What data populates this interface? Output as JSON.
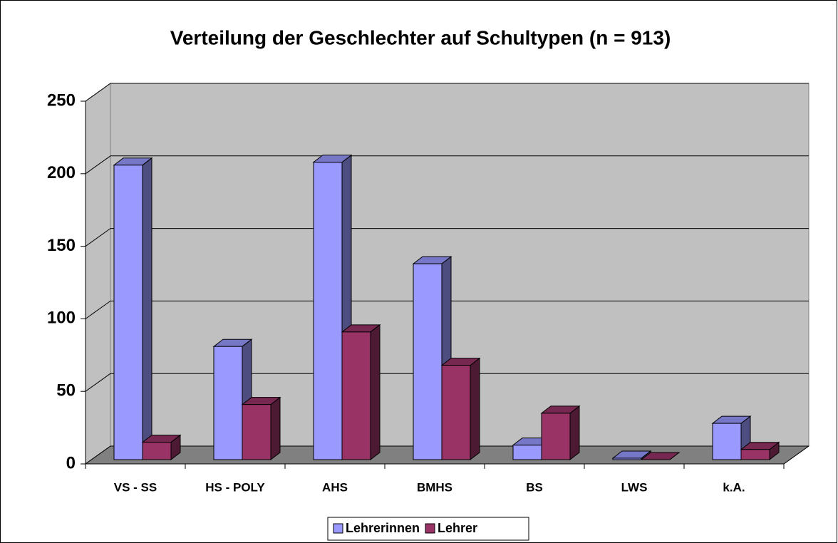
{
  "chart_data": {
    "type": "bar3d",
    "title": "Verteilung der Geschlechter auf Schultypen (n = 913)",
    "categories": [
      "VS - SS",
      "HS - POLY",
      "AHS",
      "BMHS",
      "BS",
      "LWS",
      "k.A."
    ],
    "series": [
      {
        "name": "Lehrerinnen",
        "color": "#9999ff",
        "values": [
          203,
          78,
          205,
          135,
          10,
          1,
          25
        ]
      },
      {
        "name": "Lehrer",
        "color": "#993366",
        "values": [
          12,
          38,
          88,
          65,
          32,
          0,
          7
        ]
      }
    ],
    "ylim": [
      0,
      250
    ],
    "yticks": [
      0,
      50,
      100,
      150,
      200,
      250
    ],
    "grid": true,
    "legend": "bottom"
  }
}
